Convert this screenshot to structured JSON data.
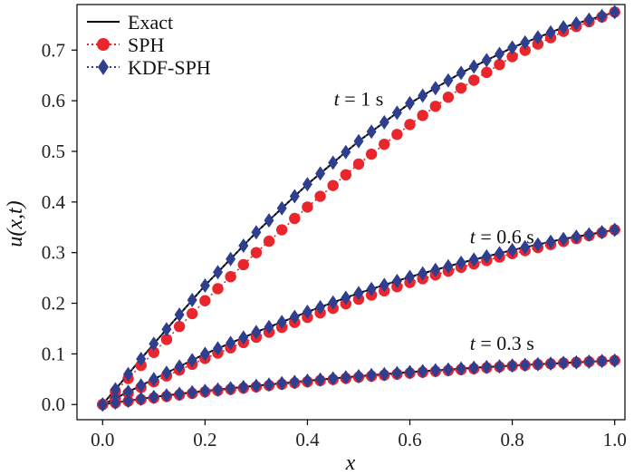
{
  "chart_data": {
    "type": "line",
    "xlabel": "x",
    "ylabel": "u(x,t)",
    "xlim": [
      -0.05,
      1.02
    ],
    "ylim": [
      -0.03,
      0.79
    ],
    "xticks": [
      0.0,
      0.2,
      0.4,
      0.6,
      0.8,
      1.0
    ],
    "xtick_labels": [
      "0.0",
      "0.2",
      "0.4",
      "0.6",
      "0.8",
      "1.0"
    ],
    "yticks": [
      0.0,
      0.1,
      0.2,
      0.3,
      0.4,
      0.5,
      0.6,
      0.7
    ],
    "ytick_labels": [
      "0.0",
      "0.1",
      "0.2",
      "0.3",
      "0.4",
      "0.5",
      "0.6",
      "0.7"
    ],
    "grid": false,
    "legend_position": "top-left",
    "colors": {
      "exact": "#000000",
      "sph": "#e8262c",
      "kdf": "#2e3f8f"
    },
    "x": [
      0.0,
      0.1,
      0.2,
      0.3,
      0.4,
      0.5,
      0.6,
      0.7,
      0.8,
      0.9,
      1.0
    ],
    "curves": [
      {
        "annotation": "t = 1 s",
        "annotation_pos": {
          "x": 0.5,
          "y": 0.59
        },
        "exact": [
          0.0,
          0.12,
          0.235,
          0.34,
          0.435,
          0.52,
          0.595,
          0.655,
          0.705,
          0.745,
          0.775
        ],
        "sph": [
          0.0,
          0.103,
          0.205,
          0.3,
          0.39,
          0.475,
          0.553,
          0.625,
          0.687,
          0.737,
          0.775
        ],
        "kdf": [
          0.0,
          0.12,
          0.235,
          0.34,
          0.435,
          0.52,
          0.595,
          0.655,
          0.705,
          0.745,
          0.775
        ]
      },
      {
        "annotation": "t = 0.6 s",
        "annotation_pos": {
          "x": 0.78,
          "y": 0.318
        },
        "exact": [
          0.0,
          0.05,
          0.1,
          0.143,
          0.183,
          0.22,
          0.252,
          0.28,
          0.305,
          0.327,
          0.345
        ],
        "sph": [
          0.0,
          0.045,
          0.091,
          0.133,
          0.172,
          0.208,
          0.241,
          0.271,
          0.298,
          0.322,
          0.345
        ],
        "kdf": [
          0.0,
          0.05,
          0.1,
          0.143,
          0.183,
          0.22,
          0.252,
          0.28,
          0.305,
          0.327,
          0.345
        ]
      },
      {
        "annotation": "t = 0.3 s",
        "annotation_pos": {
          "x": 0.78,
          "y": 0.108
        },
        "exact": [
          0.0,
          0.015,
          0.027,
          0.037,
          0.047,
          0.056,
          0.064,
          0.071,
          0.077,
          0.082,
          0.087
        ],
        "sph": [
          0.0,
          0.013,
          0.025,
          0.035,
          0.045,
          0.054,
          0.062,
          0.069,
          0.076,
          0.082,
          0.087
        ],
        "kdf": [
          0.0,
          0.015,
          0.027,
          0.037,
          0.047,
          0.056,
          0.064,
          0.071,
          0.077,
          0.082,
          0.087
        ]
      }
    ],
    "marker_count": 41,
    "series": [
      {
        "name": "Exact"
      },
      {
        "name": "SPH"
      },
      {
        "name": "KDF-SPH"
      }
    ],
    "legend": {
      "exact_label": "Exact",
      "sph_label": "SPH",
      "kdf_label": "KDF-SPH"
    }
  }
}
